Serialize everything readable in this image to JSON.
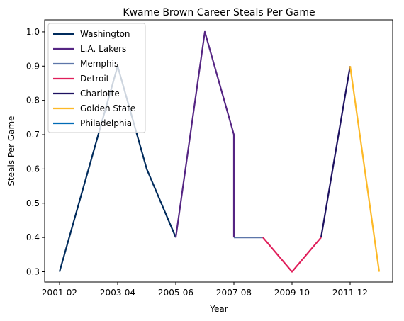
{
  "chart_data": {
    "type": "line",
    "title": "Kwame Brown Career Steals Per Game",
    "xlabel": "Year",
    "ylabel": "Steals Per Game",
    "x_categories": [
      "2001-02",
      "2002-03",
      "2003-04",
      "2004-05",
      "2005-06",
      "2006-07",
      "2007-08",
      "2008-09",
      "2009-10",
      "2010-11",
      "2011-12",
      "2012-13"
    ],
    "x_tick_labels": [
      "2001-02",
      "2003-04",
      "2005-06",
      "2007-08",
      "2009-10",
      "2011-12"
    ],
    "y_ticks": [
      0.3,
      0.4,
      0.5,
      0.6,
      0.7,
      0.8,
      0.9,
      1.0
    ],
    "y_tick_labels": [
      "0.3",
      "0.4",
      "0.5",
      "0.6",
      "0.7",
      "0.8",
      "0.9",
      "1.0"
    ],
    "ylim": [
      0.27,
      1.035
    ],
    "grid": false,
    "legend_position": "upper-left",
    "series": [
      {
        "name": "Washington",
        "color": "#002B5C",
        "points": [
          [
            "2001-02",
            0.3
          ],
          [
            "2002-03",
            0.6
          ],
          [
            "2003-04",
            0.9
          ],
          [
            "2004-05",
            0.6
          ],
          [
            "2005-06",
            0.4
          ]
        ]
      },
      {
        "name": "L.A. Lakers",
        "color": "#552583",
        "points": [
          [
            "2005-06",
            0.4
          ],
          [
            "2006-07",
            1.0
          ],
          [
            "2007-08",
            0.7
          ],
          [
            "2007-08",
            0.4
          ]
        ]
      },
      {
        "name": "Memphis",
        "color": "#5D76A9",
        "points": [
          [
            "2007-08",
            0.4
          ],
          [
            "2008-09",
            0.4
          ]
        ]
      },
      {
        "name": "Detroit",
        "color": "#E01E5A",
        "points": [
          [
            "2008-09",
            0.4
          ],
          [
            "2009-10",
            0.3
          ],
          [
            "2010-11",
            0.4
          ]
        ]
      },
      {
        "name": "Charlotte",
        "color": "#1D1160",
        "points": [
          [
            "2010-11",
            0.4
          ],
          [
            "2011-12",
            0.9
          ]
        ]
      },
      {
        "name": "Golden State",
        "color": "#FDB927",
        "points": [
          [
            "2011-12",
            0.9
          ],
          [
            "2012-13",
            0.3
          ]
        ]
      },
      {
        "name": "Philadelphia",
        "color": "#006BB6",
        "points": []
      }
    ]
  }
}
